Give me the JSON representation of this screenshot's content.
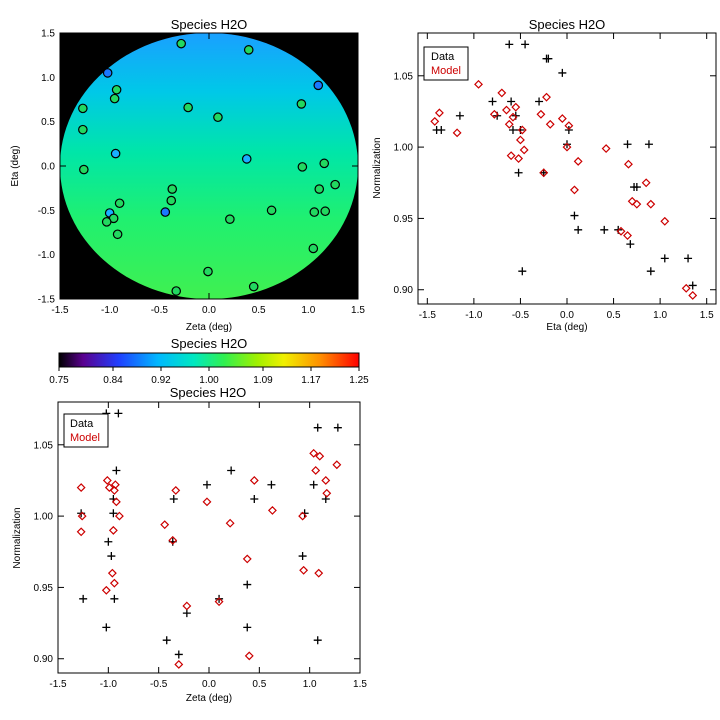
{
  "chart_data": [
    {
      "type": "scatter",
      "title": "Species H2O",
      "xlabel": "Zeta (deg)",
      "ylabel": "Eta (deg)",
      "xlim": [
        -1.5,
        1.5
      ],
      "ylim": [
        -1.5,
        1.5
      ],
      "xticks": [
        "-1.5",
        "-1.0",
        "-0.5",
        "0.0",
        "0.5",
        "1.0",
        "1.5"
      ],
      "yticks": [
        "-1.5",
        "-1.0",
        "-0.5",
        "0.0",
        "0.5",
        "1.0",
        "1.5"
      ],
      "background": "circular map field, black outside",
      "points": [
        {
          "x": -0.28,
          "y": 1.38,
          "v": 0.98
        },
        {
          "x": 0.4,
          "y": 1.31,
          "v": 0.98
        },
        {
          "x": -1.02,
          "y": 1.05,
          "v": 0.86
        },
        {
          "x": 1.1,
          "y": 0.91,
          "v": 0.86
        },
        {
          "x": -0.93,
          "y": 0.86,
          "v": 1.0
        },
        {
          "x": -0.95,
          "y": 0.76,
          "v": 1.0
        },
        {
          "x": -0.21,
          "y": 0.66,
          "v": 1.0
        },
        {
          "x": 0.93,
          "y": 0.7,
          "v": 1.0
        },
        {
          "x": -1.27,
          "y": 0.65,
          "v": 1.0
        },
        {
          "x": 0.09,
          "y": 0.55,
          "v": 1.0
        },
        {
          "x": -1.27,
          "y": 0.41,
          "v": 1.0
        },
        {
          "x": -0.94,
          "y": 0.14,
          "v": 0.93
        },
        {
          "x": 0.38,
          "y": 0.08,
          "v": 0.93
        },
        {
          "x": 1.16,
          "y": 0.03,
          "v": 1.0
        },
        {
          "x": -1.26,
          "y": -0.04,
          "v": 1.0
        },
        {
          "x": 0.94,
          "y": -0.01,
          "v": 1.0
        },
        {
          "x": 1.27,
          "y": -0.21,
          "v": 1.0
        },
        {
          "x": -0.37,
          "y": -0.26,
          "v": 1.0
        },
        {
          "x": 1.11,
          "y": -0.26,
          "v": 1.0
        },
        {
          "x": -0.38,
          "y": -0.39,
          "v": 1.0
        },
        {
          "x": -0.9,
          "y": -0.42,
          "v": 1.0
        },
        {
          "x": -0.44,
          "y": -0.52,
          "v": 0.84
        },
        {
          "x": -1.0,
          "y": -0.53,
          "v": 0.93
        },
        {
          "x": 0.63,
          "y": -0.5,
          "v": 1.0
        },
        {
          "x": 1.06,
          "y": -0.52,
          "v": 1.0
        },
        {
          "x": 1.17,
          "y": -0.51,
          "v": 1.0
        },
        {
          "x": -0.96,
          "y": -0.59,
          "v": 1.0
        },
        {
          "x": -1.03,
          "y": -0.63,
          "v": 1.0
        },
        {
          "x": 0.21,
          "y": -0.6,
          "v": 1.0
        },
        {
          "x": -0.92,
          "y": -0.77,
          "v": 1.0
        },
        {
          "x": 1.05,
          "y": -0.93,
          "v": 1.0
        },
        {
          "x": -0.01,
          "y": -1.19,
          "v": 1.0
        },
        {
          "x": 0.45,
          "y": -1.36,
          "v": 1.0
        },
        {
          "x": -0.33,
          "y": -1.41,
          "v": 1.0
        }
      ]
    },
    {
      "type": "scatter",
      "title": "Species H2O",
      "xlabel": "Eta (deg)",
      "ylabel": "Normalization",
      "xlim": [
        -1.6,
        1.6
      ],
      "ylim": [
        0.89,
        1.08
      ],
      "xticks": [
        "-1.5",
        "-1.0",
        "-0.5",
        "0.0",
        "0.5",
        "1.0",
        "1.5"
      ],
      "yticks": [
        "0.90",
        "0.95",
        "1.00",
        "1.05"
      ],
      "legend": {
        "position": "top-left",
        "entries": [
          "Data",
          "Model"
        ]
      },
      "series": [
        {
          "name": "Data",
          "marker": "plus",
          "color": "#000000",
          "points": [
            [
              -1.4,
              1.012
            ],
            [
              -1.35,
              1.012
            ],
            [
              -1.15,
              1.022
            ],
            [
              -0.8,
              1.032
            ],
            [
              -0.75,
              1.022
            ],
            [
              -0.62,
              1.072
            ],
            [
              -0.6,
              1.032
            ],
            [
              -0.58,
              1.012
            ],
            [
              -0.55,
              1.022
            ],
            [
              -0.52,
              0.982
            ],
            [
              -0.5,
              1.012
            ],
            [
              -0.48,
              0.913
            ],
            [
              -0.45,
              1.072
            ],
            [
              -0.3,
              1.032
            ],
            [
              -0.25,
              0.982
            ],
            [
              -0.22,
              1.062
            ],
            [
              -0.2,
              1.062
            ],
            [
              -0.05,
              1.052
            ],
            [
              0.0,
              1.002
            ],
            [
              0.02,
              1.012
            ],
            [
              0.08,
              0.952
            ],
            [
              0.12,
              0.942
            ],
            [
              0.4,
              0.942
            ],
            [
              0.55,
              0.942
            ],
            [
              0.65,
              1.002
            ],
            [
              0.68,
              0.932
            ],
            [
              0.72,
              0.972
            ],
            [
              0.75,
              0.972
            ],
            [
              0.88,
              1.002
            ],
            [
              0.9,
              0.913
            ],
            [
              1.05,
              0.922
            ],
            [
              1.3,
              0.922
            ],
            [
              1.35,
              0.903
            ]
          ]
        },
        {
          "name": "Model",
          "marker": "diamond",
          "color": "#cc0000",
          "points": [
            [
              -1.42,
              1.018
            ],
            [
              -1.37,
              1.024
            ],
            [
              -1.18,
              1.01
            ],
            [
              -0.95,
              1.044
            ],
            [
              -0.78,
              1.023
            ],
            [
              -0.7,
              1.038
            ],
            [
              -0.65,
              1.026
            ],
            [
              -0.62,
              1.016
            ],
            [
              -0.6,
              0.994
            ],
            [
              -0.58,
              1.021
            ],
            [
              -0.55,
              1.028
            ],
            [
              -0.52,
              0.992
            ],
            [
              -0.5,
              1.005
            ],
            [
              -0.48,
              1.012
            ],
            [
              -0.46,
              0.998
            ],
            [
              -0.28,
              1.023
            ],
            [
              -0.25,
              0.982
            ],
            [
              -0.22,
              1.035
            ],
            [
              -0.18,
              1.016
            ],
            [
              -0.05,
              1.02
            ],
            [
              0.0,
              1.0
            ],
            [
              0.02,
              1.015
            ],
            [
              0.08,
              0.97
            ],
            [
              0.12,
              0.99
            ],
            [
              0.42,
              0.999
            ],
            [
              0.58,
              0.941
            ],
            [
              0.65,
              0.938
            ],
            [
              0.66,
              0.988
            ],
            [
              0.7,
              0.962
            ],
            [
              0.75,
              0.96
            ],
            [
              0.85,
              0.975
            ],
            [
              0.9,
              0.96
            ],
            [
              1.05,
              0.948
            ],
            [
              1.28,
              0.901
            ],
            [
              1.35,
              0.896
            ]
          ]
        }
      ]
    },
    {
      "type": "colorbar",
      "title": "Species H2O",
      "range": [
        0.75,
        1.25
      ],
      "ticks": [
        "0.75",
        "0.84",
        "0.92",
        "1.00",
        "1.09",
        "1.17",
        "1.25"
      ]
    },
    {
      "type": "scatter",
      "title": "Species H2O",
      "xlabel": "Zeta (deg)",
      "ylabel": "Normalization",
      "xlim": [
        -1.5,
        1.5
      ],
      "ylim": [
        0.89,
        1.08
      ],
      "xticks": [
        "-1.5",
        "-1.0",
        "-0.5",
        "0.0",
        "0.5",
        "1.0",
        "1.5"
      ],
      "yticks": [
        "0.90",
        "0.95",
        "1.00",
        "1.05"
      ],
      "legend": {
        "position": "top-left",
        "entries": [
          "Data",
          "Model"
        ]
      },
      "series": [
        {
          "name": "Data",
          "marker": "plus",
          "color": "#000000",
          "points": [
            [
              -1.27,
              1.052
            ],
            [
              -1.27,
              1.002
            ],
            [
              -1.25,
              0.942
            ],
            [
              -1.02,
              1.072
            ],
            [
              -1.02,
              0.922
            ],
            [
              -1.0,
              0.982
            ],
            [
              -0.97,
              0.972
            ],
            [
              -0.95,
              1.012
            ],
            [
              -0.95,
              1.002
            ],
            [
              -0.94,
              0.942
            ],
            [
              -0.92,
              1.032
            ],
            [
              -0.9,
              1.072
            ],
            [
              -0.42,
              0.913
            ],
            [
              -0.36,
              0.982
            ],
            [
              -0.35,
              1.012
            ],
            [
              -0.3,
              0.903
            ],
            [
              -0.22,
              0.932
            ],
            [
              -0.02,
              1.022
            ],
            [
              0.1,
              0.942
            ],
            [
              0.22,
              1.032
            ],
            [
              0.38,
              0.952
            ],
            [
              0.38,
              0.922
            ],
            [
              0.45,
              1.012
            ],
            [
              0.62,
              1.022
            ],
            [
              0.93,
              0.972
            ],
            [
              0.95,
              1.002
            ],
            [
              1.04,
              1.022
            ],
            [
              1.08,
              0.913
            ],
            [
              1.08,
              1.062
            ],
            [
              1.16,
              1.012
            ],
            [
              1.28,
              1.062
            ]
          ]
        },
        {
          "name": "Model",
          "marker": "diamond",
          "color": "#cc0000",
          "points": [
            [
              -1.27,
              1.02
            ],
            [
              -1.26,
              1.0
            ],
            [
              -1.27,
              0.989
            ],
            [
              -1.01,
              1.025
            ],
            [
              -1.02,
              0.948
            ],
            [
              -0.99,
              1.02
            ],
            [
              -0.96,
              0.96
            ],
            [
              -0.95,
              0.99
            ],
            [
              -0.94,
              0.953
            ],
            [
              -0.94,
              1.018
            ],
            [
              -0.93,
              1.022
            ],
            [
              -0.92,
              1.01
            ],
            [
              -0.89,
              1.0
            ],
            [
              -0.44,
              0.994
            ],
            [
              -0.36,
              0.983
            ],
            [
              -0.33,
              1.018
            ],
            [
              -0.3,
              0.896
            ],
            [
              -0.22,
              0.937
            ],
            [
              -0.02,
              1.01
            ],
            [
              0.1,
              0.94
            ],
            [
              0.21,
              0.995
            ],
            [
              0.38,
              0.97
            ],
            [
              0.4,
              0.902
            ],
            [
              0.45,
              1.025
            ],
            [
              0.63,
              1.004
            ],
            [
              0.93,
              1.0
            ],
            [
              0.94,
              0.962
            ],
            [
              1.04,
              1.044
            ],
            [
              1.06,
              1.032
            ],
            [
              1.09,
              0.96
            ],
            [
              1.1,
              1.042
            ],
            [
              1.16,
              1.025
            ],
            [
              1.17,
              1.016
            ],
            [
              1.27,
              1.036
            ]
          ]
        }
      ]
    }
  ]
}
